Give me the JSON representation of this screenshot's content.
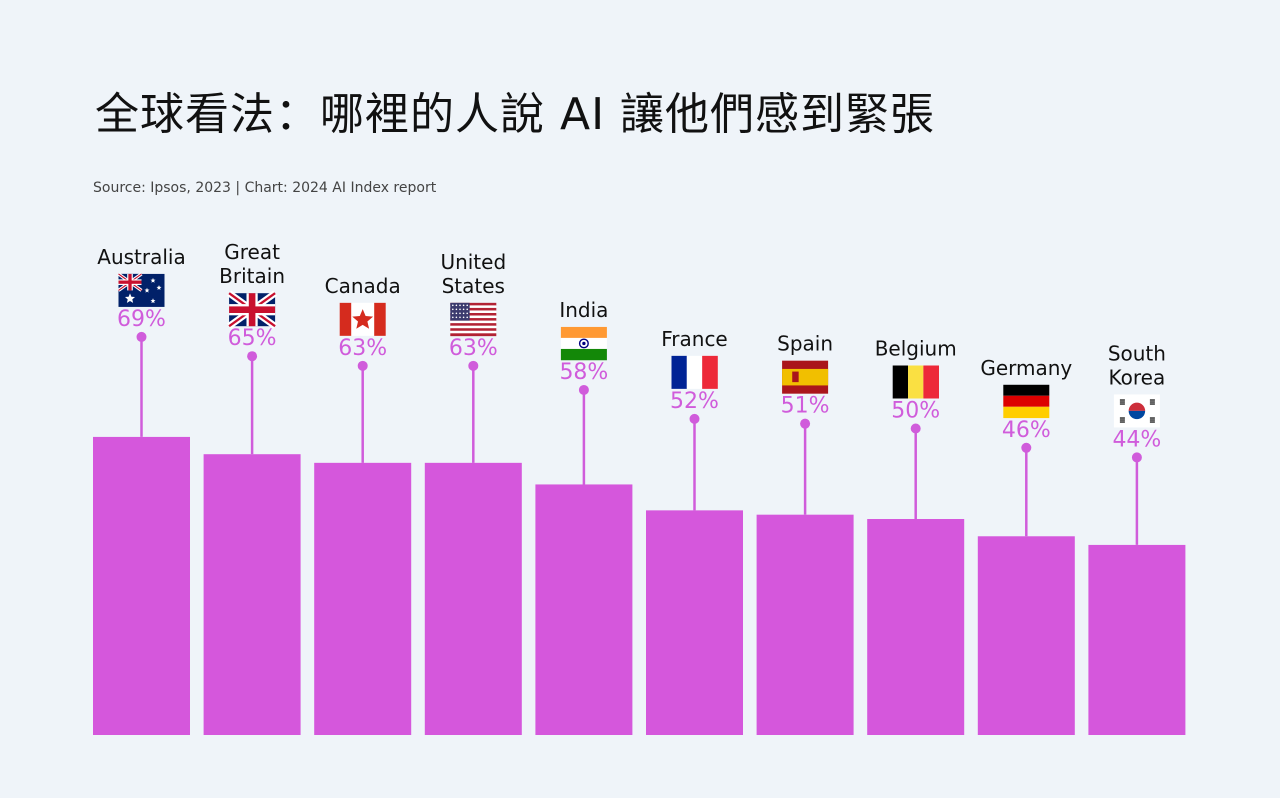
{
  "title": "全球看法：哪裡的人說 AI 讓他們感到緊張",
  "source": "Source: Ipsos, 2023 | Chart: 2024 AI Index report",
  "colors": {
    "bar": "#d557dc",
    "accent": "#d05cdb",
    "background": "#eff4f9"
  },
  "chart_data": {
    "type": "bar",
    "title": "全球看法：哪裡的人說 AI 讓他們感到緊張",
    "categories": [
      "Australia",
      "Great Britain",
      "Canada",
      "United States",
      "India",
      "France",
      "Spain",
      "Belgium",
      "Germany",
      "South Korea"
    ],
    "label_lines": [
      [
        "Australia"
      ],
      [
        "Great",
        "Britain"
      ],
      [
        "Canada"
      ],
      [
        "United",
        "States"
      ],
      [
        "India"
      ],
      [
        "France"
      ],
      [
        "Spain"
      ],
      [
        "Belgium"
      ],
      [
        "Germany"
      ],
      [
        "South",
        "Korea"
      ]
    ],
    "flags": [
      "australia-flag",
      "great-britain-flag",
      "canada-flag",
      "united-states-flag",
      "india-flag",
      "france-flag",
      "spain-flag",
      "belgium-flag",
      "germany-flag",
      "south-korea-flag"
    ],
    "values": [
      69,
      65,
      63,
      63,
      58,
      52,
      51,
      50,
      46,
      44
    ],
    "value_labels": [
      "69%",
      "65%",
      "63%",
      "63%",
      "58%",
      "52%",
      "51%",
      "50%",
      "46%",
      "44%"
    ],
    "ylim": [
      0,
      100
    ],
    "xlabel": "",
    "ylabel": "",
    "grid": false
  }
}
